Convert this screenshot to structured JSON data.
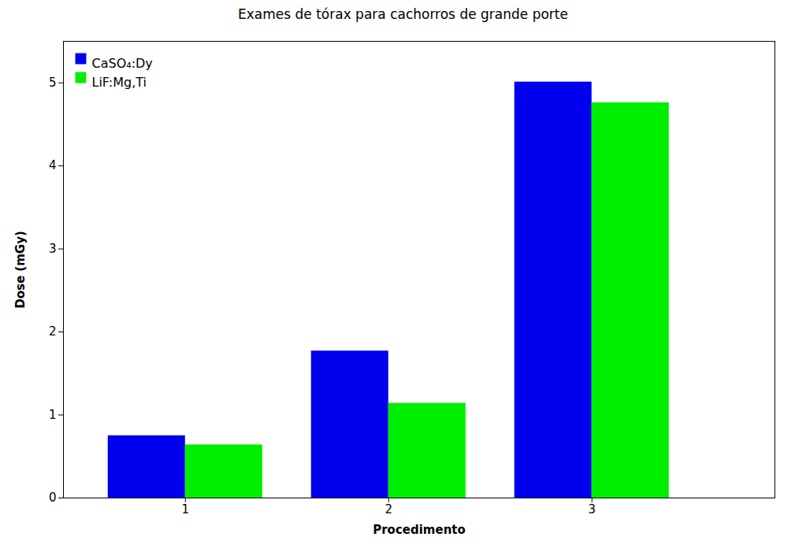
{
  "chart_data": {
    "type": "bar",
    "title": "Exames de tórax para cachorros de grande porte",
    "xlabel": "Procedimento",
    "ylabel": "Dose (mGy)",
    "x": [
      1,
      2,
      3
    ],
    "series": [
      {
        "name": "CaSO₄:Dy",
        "color": "#0000EE",
        "values": [
          0.75,
          1.77,
          5.01
        ]
      },
      {
        "name": "LiF:Mg,Ti",
        "color": "#00EE00",
        "values": [
          0.64,
          1.14,
          4.76
        ]
      }
    ],
    "xlim": [
      0.4,
      3.9
    ],
    "xticks": [
      1,
      2,
      3
    ],
    "ylim": [
      0,
      5.5
    ],
    "yticks": [
      0,
      1,
      2,
      3,
      4,
      5
    ],
    "legend": "upper left",
    "grid": false
  }
}
